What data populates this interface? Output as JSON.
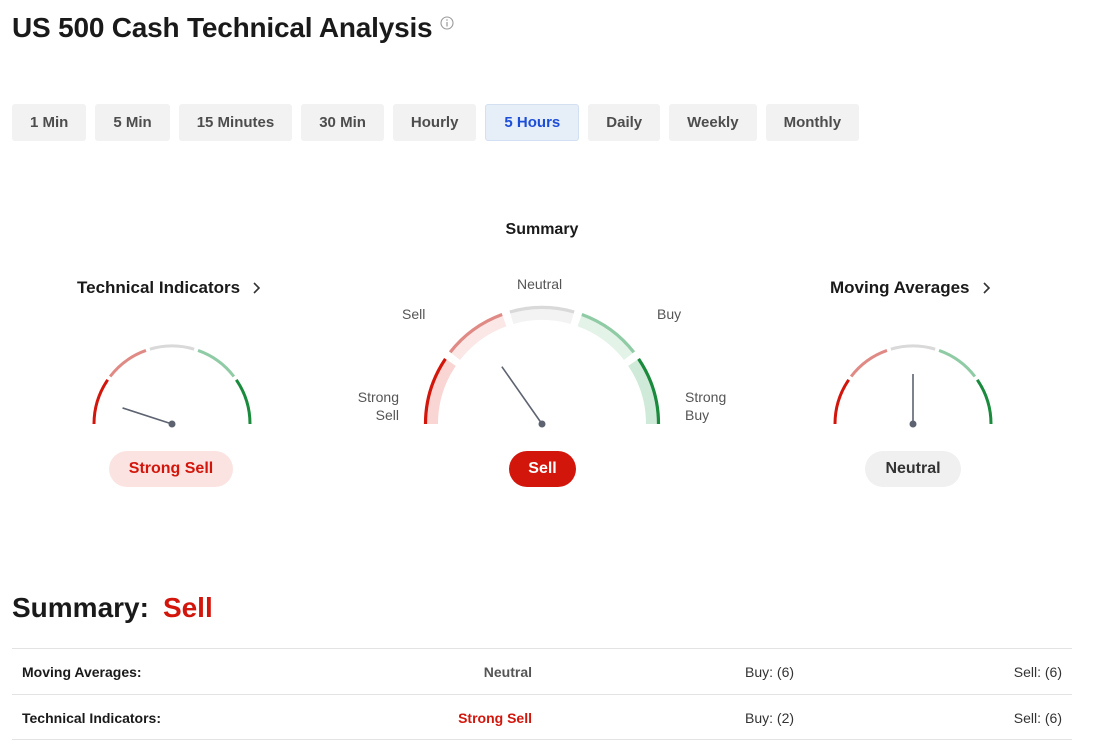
{
  "page": {
    "title": "US 500 Cash Technical Analysis"
  },
  "timeframes": [
    {
      "label": "1 Min",
      "active": false
    },
    {
      "label": "5 Min",
      "active": false
    },
    {
      "label": "15 Minutes",
      "active": false
    },
    {
      "label": "30 Min",
      "active": false
    },
    {
      "label": "Hourly",
      "active": false
    },
    {
      "label": "5 Hours",
      "active": true
    },
    {
      "label": "Daily",
      "active": false
    },
    {
      "label": "Weekly",
      "active": false
    },
    {
      "label": "Monthly",
      "active": false
    }
  ],
  "summary_gauge": {
    "title": "Summary",
    "labels": {
      "strong_sell": "Strong\nSell",
      "sell": "Sell",
      "neutral": "Neutral",
      "buy": "Buy",
      "strong_buy": "Strong\nBuy"
    },
    "result": "Sell"
  },
  "technical_indicators": {
    "title": "Technical Indicators",
    "result": "Strong Sell"
  },
  "moving_averages": {
    "title": "Moving Averages",
    "result": "Neutral"
  },
  "summary": {
    "label": "Summary:",
    "value": "Sell",
    "rows": [
      {
        "name": "Moving Averages:",
        "result": "Neutral",
        "buy": "Buy: (6)",
        "sell": "Sell: (6)"
      },
      {
        "name": "Technical Indicators:",
        "result": "Strong Sell",
        "buy": "Buy: (2)",
        "sell": "Sell: (6)"
      }
    ]
  },
  "colors": {
    "strong_sell": "#d3160c",
    "sell": "#e08a86",
    "neutral": "#d9d9d9",
    "buy": "#8fcba4",
    "strong_buy": "#1a8a3c",
    "needle": "#5d6370",
    "active_tab": "#1d4ed8"
  },
  "icons": [
    "info-icon",
    "chevron-right-icon"
  ]
}
